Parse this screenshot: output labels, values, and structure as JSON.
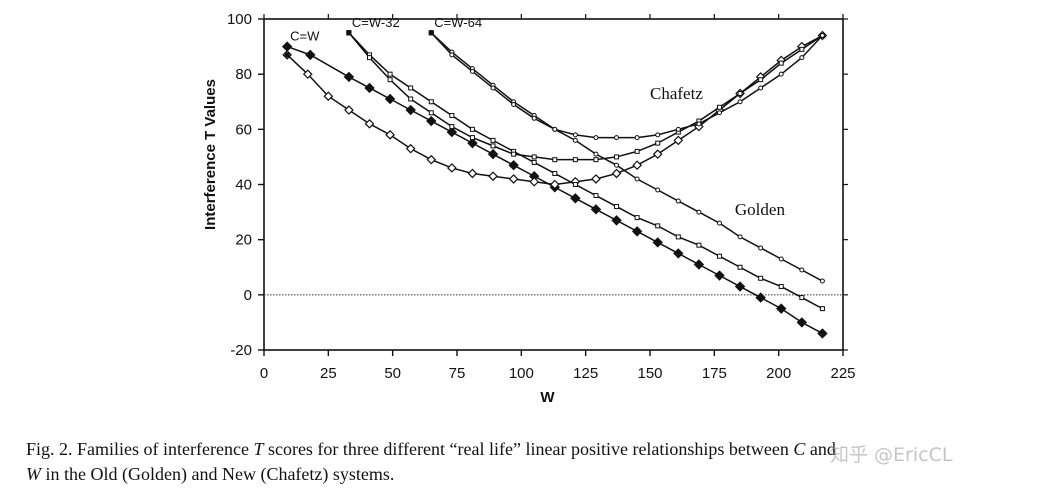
{
  "chart_data": {
    "type": "line",
    "title": "",
    "xlabel": "W",
    "ylabel": "Interference T Values",
    "xlim": [
      0,
      225
    ],
    "ylim": [
      -20,
      100
    ],
    "x_ticks": [
      0,
      25,
      50,
      75,
      100,
      125,
      150,
      175,
      200,
      225
    ],
    "y_ticks": [
      -20,
      0,
      20,
      40,
      60,
      80,
      100
    ],
    "zero_line": true,
    "annotations": [
      {
        "text": "Chafetz",
        "x": 150,
        "y": 71
      },
      {
        "text": "Golden",
        "x": 183,
        "y": 29
      }
    ],
    "series": [
      {
        "name": "C=W Golden",
        "label": "C=W",
        "marker": "diamond-filled",
        "x": [
          9,
          18,
          33,
          41,
          49,
          57,
          65,
          73,
          81,
          89,
          97,
          105,
          113,
          121,
          129,
          137,
          145,
          153,
          161,
          169,
          177,
          185,
          193,
          201,
          209,
          217
        ],
        "y": [
          90,
          87,
          79,
          75,
          71,
          67,
          63,
          59,
          55,
          51,
          47,
          43,
          39,
          35,
          31,
          27,
          23,
          19,
          15,
          11,
          7,
          3,
          -1,
          -5,
          -10,
          -14
        ]
      },
      {
        "name": "C=W Chafetz",
        "label": "",
        "marker": "diamond-open",
        "x": [
          9,
          17,
          25,
          33,
          41,
          49,
          57,
          65,
          73,
          81,
          89,
          97,
          105,
          113,
          121,
          129,
          137,
          145,
          153,
          161,
          169,
          177,
          185,
          193,
          201,
          209,
          217
        ],
        "y": [
          87,
          80,
          72,
          67,
          62,
          58,
          53,
          49,
          46,
          44,
          43,
          42,
          41,
          40,
          41,
          42,
          44,
          47,
          51,
          56,
          61,
          67,
          73,
          79,
          85,
          90,
          94
        ]
      },
      {
        "name": "C=W-32 Golden",
        "label": "C=W-32",
        "marker": "square-small",
        "x": [
          33,
          41,
          49,
          57,
          65,
          73,
          81,
          89,
          97,
          105,
          113,
          121,
          129,
          137,
          145,
          153,
          161,
          169,
          177,
          185,
          193,
          201,
          209,
          217
        ],
        "y": [
          95,
          87,
          80,
          75,
          70,
          65,
          60,
          56,
          52,
          48,
          44,
          40,
          36,
          32,
          28,
          25,
          21,
          18,
          14,
          10,
          6,
          3,
          -1,
          -5
        ]
      },
      {
        "name": "C=W-32 Chafetz",
        "label": "",
        "marker": "square-small",
        "x": [
          33,
          41,
          49,
          57,
          65,
          73,
          81,
          89,
          97,
          105,
          113,
          121,
          129,
          137,
          145,
          153,
          161,
          169,
          177,
          185,
          193,
          201,
          209,
          217
        ],
        "y": [
          95,
          86,
          78,
          71,
          66,
          61,
          57,
          54,
          51,
          50,
          49,
          49,
          49,
          50,
          52,
          55,
          59,
          63,
          68,
          73,
          78,
          84,
          89,
          94
        ]
      },
      {
        "name": "C=W-64 Golden",
        "label": "C=W-64",
        "marker": "dot-small",
        "x": [
          65,
          73,
          81,
          89,
          97,
          105,
          113,
          121,
          129,
          137,
          145,
          153,
          161,
          169,
          177,
          185,
          193,
          201,
          209,
          217
        ],
        "y": [
          95,
          88,
          82,
          76,
          70,
          65,
          60,
          56,
          51,
          47,
          42,
          38,
          34,
          30,
          26,
          21,
          17,
          13,
          9,
          5
        ]
      },
      {
        "name": "C=W-64 Chafetz",
        "label": "",
        "marker": "dot-small",
        "x": [
          65,
          73,
          81,
          89,
          97,
          105,
          113,
          121,
          129,
          137,
          145,
          153,
          161,
          169,
          177,
          185,
          193,
          201,
          209,
          217
        ],
        "y": [
          95,
          87,
          81,
          75,
          69,
          64,
          60,
          58,
          57,
          57,
          57,
          58,
          60,
          62,
          66,
          70,
          75,
          80,
          86,
          94
        ]
      }
    ]
  },
  "caption": {
    "part1": "Fig. 2. Families of interference ",
    "t": "T",
    "part2": " scores for three different “real life” linear positive relationships between ",
    "c": "C",
    "part3": " and",
    "w": "W",
    "part4": " in the Old (Golden) and New (Chafetz) systems."
  },
  "watermark": "知乎 @EricCL"
}
